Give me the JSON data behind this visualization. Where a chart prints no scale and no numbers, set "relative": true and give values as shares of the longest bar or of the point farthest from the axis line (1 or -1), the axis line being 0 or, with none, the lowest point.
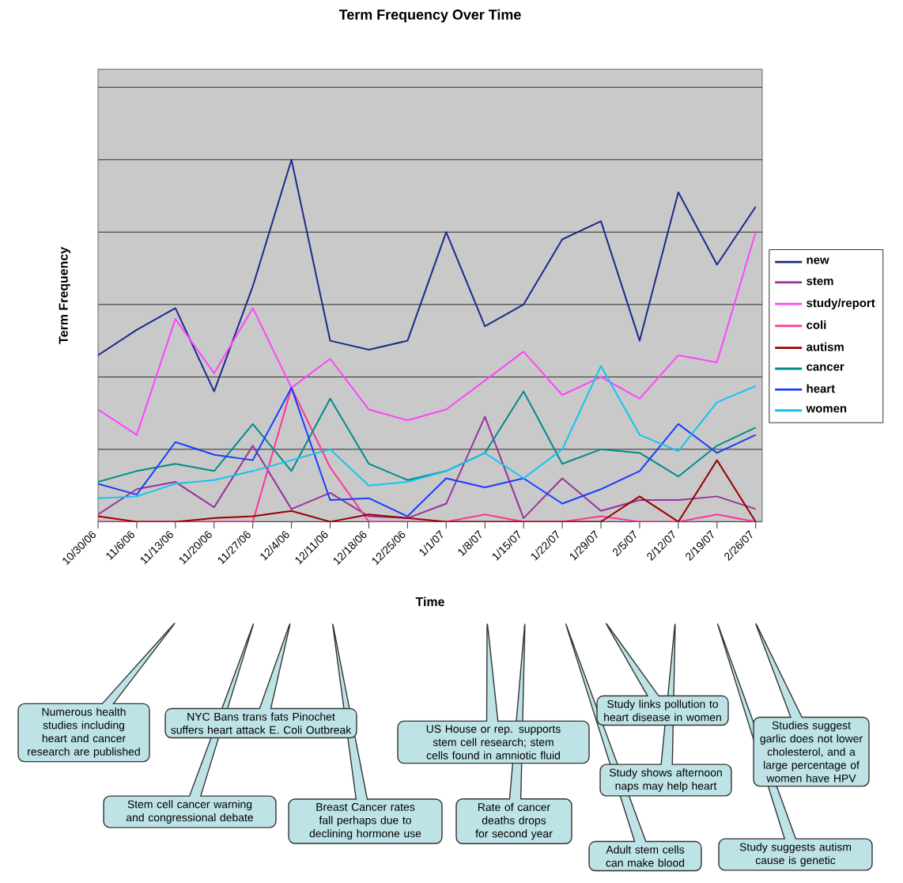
{
  "chart_data": {
    "type": "line",
    "title": "Term Frequency Over Time",
    "xlabel": "Time",
    "ylabel": "Term Frequency",
    "relative": true,
    "grid": "y",
    "legend": "right",
    "marker": "none",
    "categories": [
      "10/30/06",
      "11/6/06",
      "11/13/06",
      "11/20/06",
      "11/27/06",
      "12/4/06",
      "12/11/06",
      "12/18/06",
      "12/25/06",
      "1/1/07",
      "1/8/07",
      "1/15/07",
      "1/22/07",
      "1/29/07",
      "2/5/07",
      "2/12/07",
      "2/19/07",
      "2/26/07"
    ],
    "series": [
      {
        "name": "new",
        "color": "#1a2a8c",
        "values": [
          0.46,
          0.53,
          0.59,
          0.36,
          0.65,
          1.0,
          0.5,
          0.475,
          0.5,
          0.8,
          0.54,
          0.6,
          0.78,
          0.83,
          0.5,
          0.91,
          0.71,
          0.87
        ]
      },
      {
        "name": "stem",
        "color": "#993399",
        "values": [
          0.02,
          0.09,
          0.11,
          0.04,
          0.21,
          0.035,
          0.08,
          0.015,
          0.01,
          0.05,
          0.29,
          0.01,
          0.12,
          0.03,
          0.06,
          0.06,
          0.07,
          0.035
        ]
      },
      {
        "name": "study/report",
        "color": "#ff44ff",
        "values": [
          0.31,
          0.24,
          0.56,
          0.41,
          0.59,
          0.37,
          0.45,
          0.31,
          0.28,
          0.31,
          0.39,
          0.47,
          0.35,
          0.4,
          0.34,
          0.46,
          0.44,
          0.8
        ]
      },
      {
        "name": "coli",
        "color": "#ff3399",
        "values": [
          0,
          0,
          0,
          0,
          0,
          0.37,
          0.15,
          0,
          0,
          0,
          0.02,
          0,
          0,
          0.015,
          0,
          0,
          0.02,
          0
        ]
      },
      {
        "name": "autism",
        "color": "#990000",
        "values": [
          0.015,
          0,
          0,
          0.01,
          0.015,
          0.03,
          0,
          0.02,
          0.01,
          0,
          0,
          0,
          0,
          0,
          0.07,
          0,
          0.17,
          0
        ]
      },
      {
        "name": "cancer",
        "color": "#008b8b",
        "values": [
          0.11,
          0.14,
          0.16,
          0.14,
          0.27,
          0.14,
          0.34,
          0.16,
          0.115,
          0.14,
          0.19,
          0.36,
          0.16,
          0.2,
          0.19,
          0.125,
          0.21,
          0.26
        ]
      },
      {
        "name": "heart",
        "color": "#1a3cff",
        "values": [
          0.105,
          0.075,
          0.22,
          0.185,
          0.17,
          0.37,
          0.06,
          0.065,
          0.015,
          0.12,
          0.095,
          0.12,
          0.05,
          0.09,
          0.14,
          0.27,
          0.19,
          0.24
        ]
      },
      {
        "name": "women",
        "color": "#11c4f0",
        "values": [
          0.065,
          0.07,
          0.105,
          0.115,
          0.14,
          0.17,
          0.2,
          0.1,
          0.11,
          0.14,
          0.19,
          0.12,
          0.2,
          0.43,
          0.24,
          0.195,
          0.33,
          0.375
        ]
      }
    ],
    "annotations": [
      "Numerous health studies including heart and cancer research are published",
      "Stem cell cancer warning and congressional debate",
      "NYC Bans trans fats Pinochet suffers heart attack E. Coli Outbreak",
      "Breast Cancer rates fall perhaps due to declining hormone use",
      "US House or rep. supports stem cell research; stem cells found in amniotic fluid",
      "Rate of cancer deaths drops for second year",
      "Adult stem cells can make blood",
      "Study links pollution to heart disease in women",
      "Study shows afternoon naps may help heart",
      "Study suggests autism cause is genetic",
      "Studies suggest garlic does not lower cholesterol, and a large percentage of women have HPV"
    ]
  }
}
